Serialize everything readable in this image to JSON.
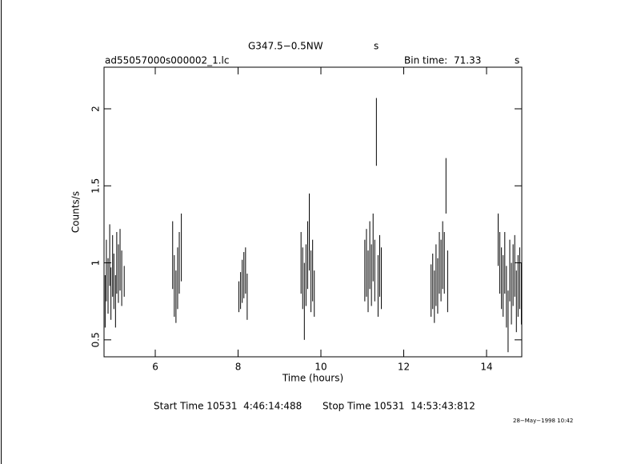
{
  "chart_data": {
    "type": "errorbar",
    "title": "G347.5−0.5NW",
    "title_unit": "s",
    "file_name": "ad55057000s000002_1.lc",
    "bin_time_label": "Bin time:",
    "bin_time": "71.33",
    "bin_time_unit": "s",
    "xlabel": "Time (hours)",
    "ylabel": "Counts/s",
    "start_time": "Start Time 10531  4:46:14:488",
    "stop_time": "Stop Time 10531  14:53:43:812",
    "date": "28−May−1998 10:42",
    "color": "#000000",
    "xlim": [
      4.763,
      14.85
    ],
    "ylim": [
      0.39,
      2.27
    ],
    "xticks": [
      6,
      8,
      10,
      12,
      14
    ],
    "yticks": [
      0.5,
      1,
      1.5,
      2
    ],
    "x": [
      4.79,
      4.82,
      4.86,
      4.9,
      4.93,
      4.97,
      5.0,
      5.04,
      5.07,
      5.11,
      5.15,
      5.19,
      5.25,
      6.42,
      6.46,
      6.5,
      6.54,
      6.58,
      6.63,
      8.02,
      8.06,
      8.1,
      8.14,
      8.18,
      8.22,
      9.52,
      9.56,
      9.6,
      9.64,
      9.68,
      9.72,
      9.76,
      9.8,
      9.84,
      11.06,
      11.1,
      11.14,
      11.18,
      11.22,
      11.26,
      11.3,
      11.34,
      11.38,
      11.42,
      11.46,
      12.66,
      12.7,
      12.74,
      12.78,
      12.82,
      12.86,
      12.9,
      12.94,
      12.98,
      13.02,
      13.06,
      14.28,
      14.32,
      14.36,
      14.4,
      14.44,
      14.48,
      14.52,
      14.56,
      14.6,
      14.64,
      14.68,
      14.72,
      14.76,
      14.8,
      14.84
    ],
    "values": [
      0.75,
      0.95,
      0.85,
      1.05,
      0.8,
      0.98,
      0.88,
      0.75,
      1.0,
      0.93,
      1.02,
      0.9,
      0.88,
      1.05,
      0.85,
      0.78,
      0.9,
      1.0,
      1.1,
      0.78,
      0.82,
      0.88,
      0.92,
      0.95,
      0.78,
      1.0,
      0.9,
      0.75,
      0.92,
      1.05,
      1.2,
      0.88,
      0.95,
      0.8,
      0.95,
      1.0,
      0.88,
      1.05,
      0.92,
      1.1,
      0.95,
      1.85,
      0.85,
      0.98,
      0.9,
      0.82,
      0.88,
      0.78,
      0.92,
      0.85,
      1.0,
      0.95,
      1.05,
      1.0,
      1.5,
      0.88,
      1.15,
      1.0,
      0.9,
      0.85,
      1.0,
      0.78,
      0.62,
      0.95,
      0.8,
      0.92,
      0.98,
      0.75,
      0.85,
      0.9,
      0.8
    ],
    "errors": [
      0.17,
      0.2,
      0.18,
      0.2,
      0.17,
      0.2,
      0.18,
      0.17,
      0.2,
      0.19,
      0.2,
      0.18,
      0.1,
      0.22,
      0.2,
      0.17,
      0.2,
      0.2,
      0.22,
      0.1,
      0.12,
      0.14,
      0.15,
      0.15,
      0.15,
      0.2,
      0.2,
      0.25,
      0.2,
      0.22,
      0.25,
      0.2,
      0.2,
      0.15,
      0.2,
      0.22,
      0.2,
      0.22,
      0.2,
      0.22,
      0.2,
      0.22,
      0.2,
      0.2,
      0.2,
      0.17,
      0.18,
      0.17,
      0.2,
      0.18,
      0.2,
      0.2,
      0.22,
      0.2,
      0.18,
      0.2,
      0.17,
      0.2,
      0.2,
      0.2,
      0.2,
      0.2,
      0.2,
      0.2,
      0.2,
      0.2,
      0.2,
      0.2,
      0.2,
      0.2,
      0.2
    ]
  }
}
